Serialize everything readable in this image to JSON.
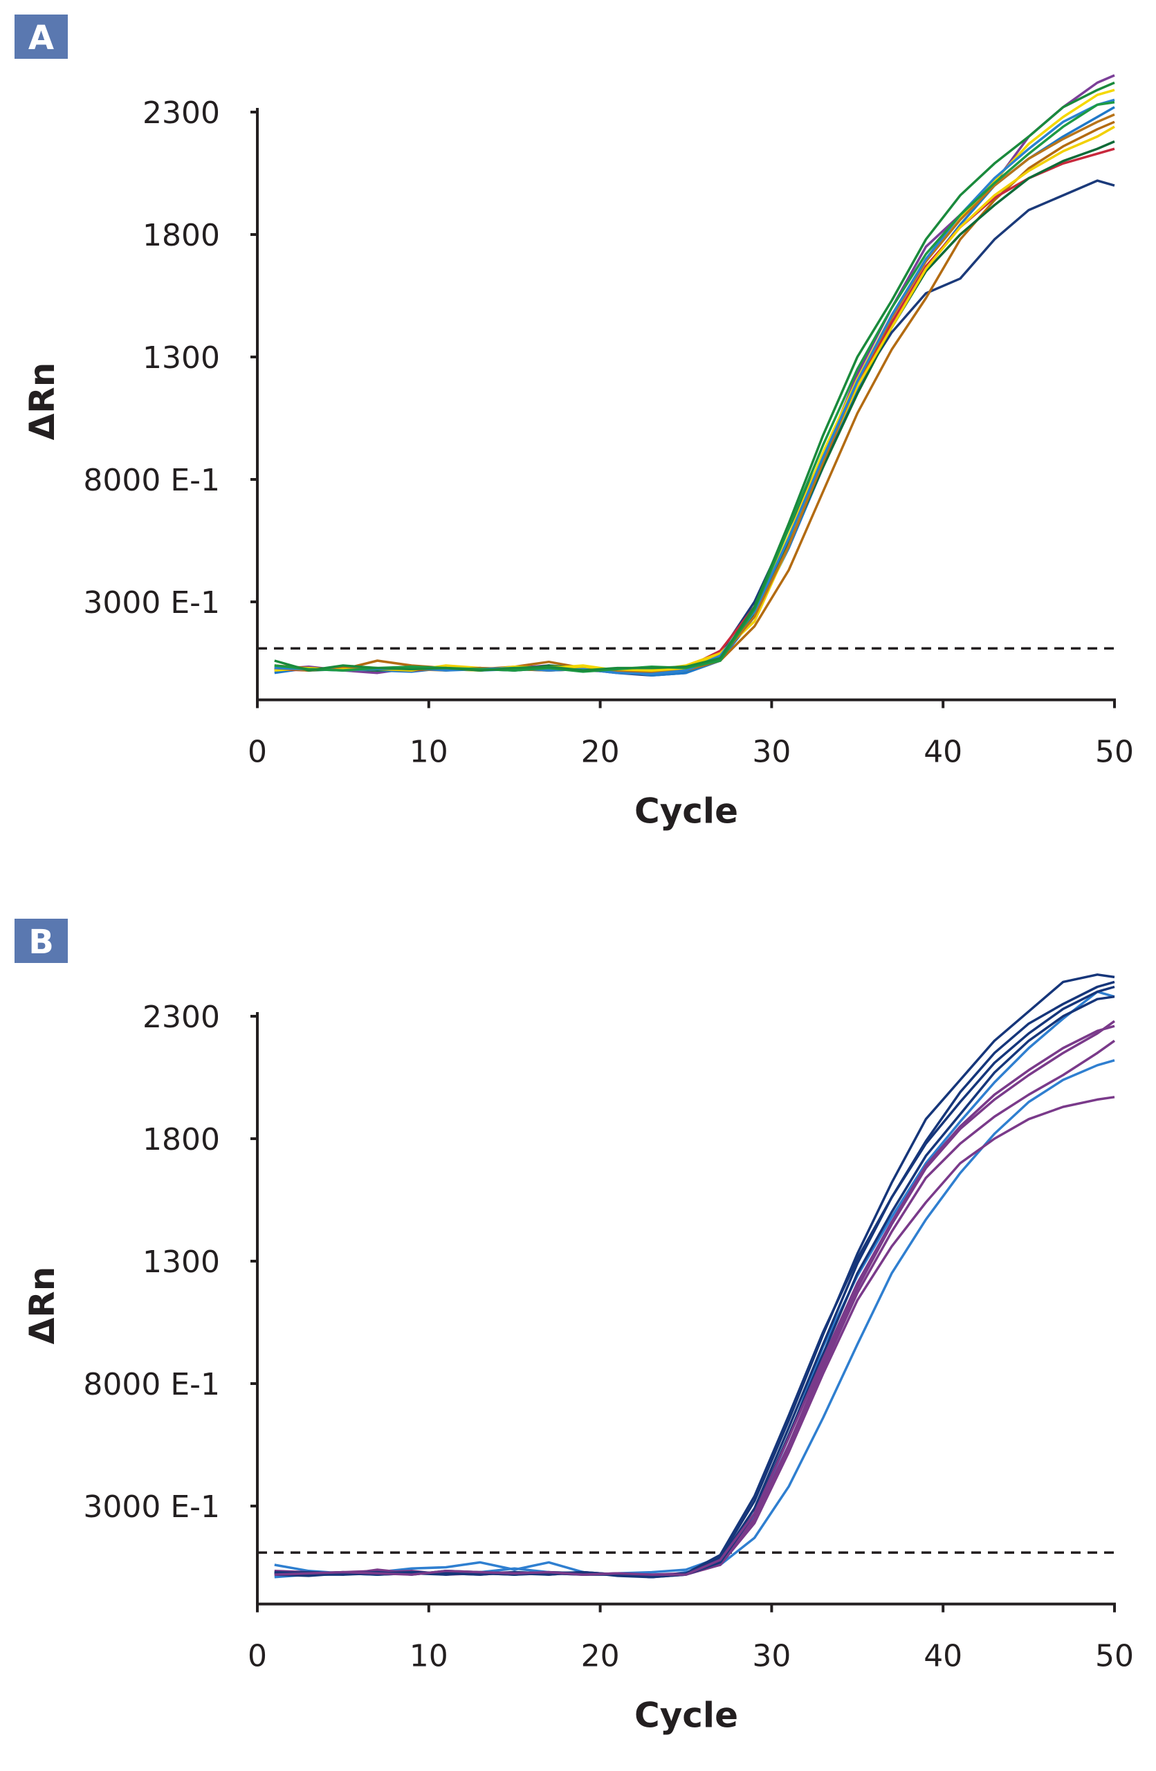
{
  "chart_data": [
    {
      "type": "line",
      "panel_label": "A",
      "xlabel": "Cycle",
      "ylabel": "ΔRn",
      "xlim": [
        0,
        50
      ],
      "ylim": [
        -100,
        2300
      ],
      "xticks": [
        0,
        10,
        20,
        30,
        40,
        50
      ],
      "xtick_labels": [
        "0",
        "10",
        "20",
        "30",
        "40",
        "50"
      ],
      "yticks": [
        300,
        800,
        1300,
        1800,
        2300
      ],
      "ytick_labels": [
        "3000 E-1",
        "8000 E-1",
        "1300",
        "1800",
        "2300"
      ],
      "threshold": 110,
      "grid": false,
      "x": [
        1,
        3,
        5,
        7,
        9,
        11,
        13,
        15,
        17,
        19,
        21,
        23,
        25,
        27,
        29,
        31,
        33,
        35,
        37,
        39,
        41,
        43,
        45,
        47,
        49,
        50
      ],
      "series": [
        {
          "name": "purple",
          "color": "#7b3f98",
          "values": [
            25,
            35,
            20,
            10,
            30,
            25,
            20,
            30,
            40,
            20,
            15,
            5,
            15,
            70,
            250,
            560,
            890,
            1230,
            1500,
            1750,
            1880,
            2010,
            2200,
            2320,
            2420,
            2450
          ]
        },
        {
          "name": "navy",
          "color": "#1b3a7a",
          "values": [
            20,
            25,
            30,
            25,
            20,
            30,
            25,
            20,
            30,
            25,
            10,
            0,
            10,
            90,
            300,
            600,
            900,
            1180,
            1400,
            1560,
            1620,
            1780,
            1900,
            1960,
            2020,
            2000
          ]
        },
        {
          "name": "blue",
          "color": "#1f78c8",
          "values": [
            10,
            30,
            25,
            20,
            15,
            30,
            20,
            25,
            20,
            30,
            20,
            0,
            10,
            60,
            240,
            520,
            850,
            1170,
            1440,
            1660,
            1840,
            2000,
            2110,
            2200,
            2280,
            2320
          ]
        },
        {
          "name": "brown",
          "color": "#b36b12",
          "values": [
            40,
            30,
            25,
            60,
            40,
            30,
            25,
            35,
            55,
            30,
            20,
            10,
            20,
            60,
            200,
            430,
            750,
            1070,
            1330,
            1540,
            1780,
            1940,
            2070,
            2160,
            2230,
            2260
          ]
        },
        {
          "name": "red",
          "color": "#c8283c",
          "values": [
            25,
            20,
            30,
            25,
            20,
            30,
            25,
            30,
            20,
            25,
            20,
            15,
            30,
            100,
            280,
            560,
            870,
            1190,
            1440,
            1670,
            1830,
            1950,
            2030,
            2090,
            2130,
            2150
          ]
        },
        {
          "name": "dark-green",
          "color": "#0f6b38",
          "values": [
            30,
            20,
            25,
            20,
            30,
            25,
            30,
            20,
            40,
            30,
            20,
            10,
            20,
            70,
            250,
            540,
            850,
            1150,
            1420,
            1650,
            1800,
            1920,
            2030,
            2100,
            2150,
            2180
          ]
        },
        {
          "name": "yellow",
          "color": "#f2d000",
          "values": [
            35,
            25,
            30,
            25,
            20,
            40,
            30,
            25,
            35,
            30,
            20,
            20,
            40,
            90,
            220,
            530,
            880,
            1180,
            1420,
            1660,
            1830,
            1960,
            2060,
            2140,
            2200,
            2240
          ]
        },
        {
          "name": "yellow-2",
          "color": "#f5d800",
          "values": [
            20,
            30,
            20,
            25,
            30,
            25,
            20,
            35,
            30,
            40,
            20,
            15,
            30,
            80,
            260,
            570,
            910,
            1210,
            1470,
            1700,
            1870,
            2020,
            2170,
            2280,
            2370,
            2390
          ]
        },
        {
          "name": "brown-2",
          "color": "#b8741a",
          "values": [
            30,
            20,
            35,
            30,
            25,
            20,
            30,
            25,
            20,
            25,
            15,
            10,
            20,
            70,
            240,
            530,
            870,
            1200,
            1460,
            1690,
            1860,
            2000,
            2110,
            2190,
            2260,
            2290
          ]
        },
        {
          "name": "blue-2",
          "color": "#2a82d0",
          "values": [
            30,
            25,
            20,
            25,
            30,
            20,
            25,
            30,
            20,
            25,
            10,
            5,
            20,
            80,
            260,
            560,
            890,
            1200,
            1470,
            1700,
            1880,
            2030,
            2150,
            2260,
            2330,
            2350
          ]
        },
        {
          "name": "green-2",
          "color": "#1d9a45",
          "values": [
            40,
            25,
            20,
            30,
            35,
            30,
            25,
            20,
            30,
            15,
            25,
            35,
            30,
            60,
            270,
            600,
            940,
            1250,
            1500,
            1720,
            1880,
            2010,
            2130,
            2240,
            2330,
            2340
          ]
        },
        {
          "name": "green",
          "color": "#1a8a3c",
          "values": [
            60,
            20,
            40,
            30,
            25,
            30,
            20,
            30,
            35,
            20,
            30,
            30,
            35,
            70,
            280,
            620,
            980,
            1300,
            1530,
            1780,
            1960,
            2090,
            2200,
            2320,
            2390,
            2420
          ]
        }
      ]
    },
    {
      "type": "line",
      "panel_label": "B",
      "xlabel": "Cycle",
      "ylabel": "ΔRn",
      "xlim": [
        0,
        50
      ],
      "ylim": [
        -100,
        2300
      ],
      "xticks": [
        0,
        10,
        20,
        30,
        40,
        50
      ],
      "xtick_labels": [
        "0",
        "10",
        "20",
        "30",
        "40",
        "50"
      ],
      "yticks": [
        300,
        800,
        1300,
        1800,
        2300
      ],
      "ytick_labels": [
        "3000 E-1",
        "8000 E-1",
        "1300",
        "1800",
        "2300"
      ],
      "threshold": 110,
      "grid": false,
      "x": [
        1,
        3,
        5,
        7,
        9,
        11,
        13,
        15,
        17,
        19,
        21,
        23,
        25,
        27,
        29,
        31,
        33,
        35,
        37,
        39,
        41,
        43,
        45,
        47,
        49,
        50
      ],
      "series": [
        {
          "name": "blue-1",
          "color": "#2f7fd0",
          "values": [
            10,
            20,
            25,
            30,
            45,
            50,
            70,
            40,
            70,
            30,
            20,
            10,
            30,
            60,
            170,
            380,
            660,
            960,
            1250,
            1470,
            1660,
            1820,
            1950,
            2040,
            2100,
            2120
          ]
        },
        {
          "name": "blue-2",
          "color": "#2f7fd0",
          "values": [
            60,
            35,
            25,
            20,
            30,
            25,
            30,
            45,
            30,
            20,
            25,
            30,
            40,
            90,
            260,
            580,
            950,
            1240,
            1480,
            1700,
            1870,
            2030,
            2170,
            2290,
            2400,
            2380
          ]
        },
        {
          "name": "purple-1",
          "color": "#7a3a8a",
          "values": [
            30,
            25,
            30,
            35,
            30,
            25,
            20,
            30,
            25,
            20,
            25,
            10,
            20,
            60,
            230,
            520,
            840,
            1140,
            1360,
            1540,
            1700,
            1800,
            1880,
            1930,
            1960,
            1970
          ]
        },
        {
          "name": "purple-2",
          "color": "#7a3a8a",
          "values": [
            25,
            30,
            20,
            40,
            25,
            30,
            25,
            20,
            30,
            25,
            20,
            20,
            25,
            70,
            250,
            550,
            880,
            1190,
            1450,
            1680,
            1840,
            1960,
            2060,
            2150,
            2230,
            2280
          ]
        },
        {
          "name": "purple-3",
          "color": "#7a3a8a",
          "values": [
            35,
            30,
            25,
            30,
            35,
            20,
            25,
            30,
            20,
            30,
            20,
            15,
            25,
            60,
            240,
            530,
            860,
            1170,
            1420,
            1640,
            1780,
            1890,
            1980,
            2060,
            2150,
            2200
          ]
        },
        {
          "name": "navy-1",
          "color": "#16367a",
          "values": [
            20,
            15,
            25,
            30,
            20,
            35,
            30,
            25,
            20,
            30,
            15,
            10,
            25,
            90,
            320,
            650,
            1000,
            1330,
            1620,
            1880,
            2040,
            2200,
            2320,
            2440,
            2470,
            2460
          ]
        },
        {
          "name": "navy-2",
          "color": "#16367a",
          "values": [
            25,
            20,
            20,
            25,
            30,
            25,
            20,
            30,
            25,
            20,
            20,
            15,
            20,
            80,
            290,
            620,
            960,
            1290,
            1560,
            1790,
            1990,
            2150,
            2270,
            2350,
            2420,
            2440
          ]
        },
        {
          "name": "navy-3",
          "color": "#16367a",
          "values": [
            30,
            25,
            30,
            20,
            25,
            30,
            25,
            20,
            30,
            25,
            20,
            10,
            20,
            70,
            270,
            590,
            920,
            1250,
            1500,
            1730,
            1900,
            2070,
            2200,
            2300,
            2370,
            2380
          ]
        },
        {
          "name": "navy-4",
          "color": "#16367a",
          "values": [
            25,
            30,
            25,
            20,
            25,
            20,
            30,
            20,
            25,
            30,
            20,
            10,
            25,
            100,
            340,
            670,
            1010,
            1310,
            1560,
            1780,
            1950,
            2110,
            2230,
            2330,
            2400,
            2420
          ]
        },
        {
          "name": "purple-4",
          "color": "#7a3a8a",
          "values": [
            20,
            25,
            30,
            25,
            20,
            35,
            30,
            25,
            30,
            20,
            25,
            20,
            20,
            80,
            270,
            580,
            900,
            1210,
            1460,
            1690,
            1850,
            1980,
            2080,
            2170,
            2240,
            2260
          ]
        }
      ]
    }
  ],
  "colors": {
    "panel_label_bg": "#5a78b0",
    "axis": "#231f20"
  }
}
